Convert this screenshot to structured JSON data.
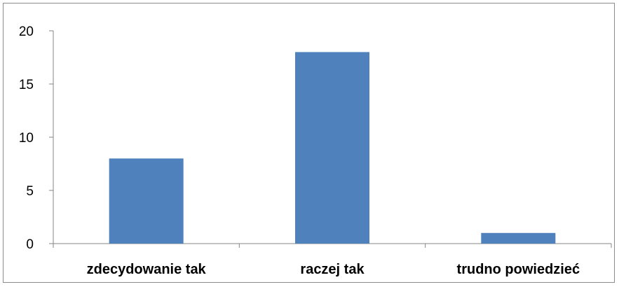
{
  "chart_data": {
    "type": "bar",
    "categories": [
      "zdecydowanie tak",
      "raczej tak",
      "trudno powiedzieć"
    ],
    "values": [
      8,
      18,
      1
    ],
    "ylim": [
      0,
      20
    ],
    "yticks": [
      "0",
      "5",
      "10",
      "15",
      "20"
    ],
    "grid": false,
    "legend": "none",
    "bar_color": "#4f81bd",
    "axis_color": "#868686"
  }
}
